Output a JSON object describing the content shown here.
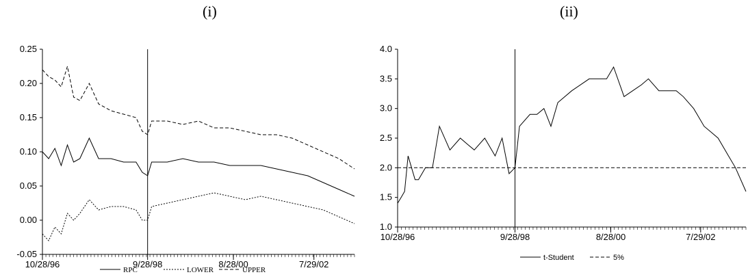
{
  "chart_data": [
    {
      "panel_label": "(i)",
      "type": "line",
      "xlabels": [
        "10/28/96",
        "9/28/98",
        "8/28/00",
        "7/29/02"
      ],
      "ylim": [
        -0.05,
        0.25
      ],
      "yticks": [
        "0.25",
        "0.20",
        "0.15",
        "0.10",
        "0.05",
        "0.00",
        "-0.05"
      ],
      "vline_at": 0.337,
      "series": [
        {
          "name": "RPC",
          "style": "solid",
          "x": [
            0,
            0.02,
            0.04,
            0.06,
            0.08,
            0.1,
            0.12,
            0.15,
            0.18,
            0.22,
            0.26,
            0.3,
            0.32,
            0.337,
            0.35,
            0.4,
            0.45,
            0.5,
            0.55,
            0.6,
            0.65,
            0.7,
            0.75,
            0.8,
            0.85,
            0.9,
            0.95,
            1.0
          ],
          "y": [
            0.1,
            0.09,
            0.105,
            0.08,
            0.11,
            0.085,
            0.09,
            0.12,
            0.09,
            0.09,
            0.085,
            0.085,
            0.07,
            0.065,
            0.085,
            0.085,
            0.09,
            0.085,
            0.085,
            0.08,
            0.08,
            0.08,
            0.075,
            0.07,
            0.065,
            0.055,
            0.045,
            0.035
          ]
        },
        {
          "name": "LOWER",
          "style": "dotted",
          "x": [
            0,
            0.02,
            0.04,
            0.06,
            0.08,
            0.1,
            0.12,
            0.15,
            0.18,
            0.22,
            0.26,
            0.3,
            0.32,
            0.337,
            0.35,
            0.4,
            0.45,
            0.5,
            0.55,
            0.6,
            0.65,
            0.7,
            0.75,
            0.8,
            0.85,
            0.9,
            0.95,
            1.0
          ],
          "y": [
            -0.02,
            -0.03,
            -0.01,
            -0.02,
            0.01,
            0.0,
            0.01,
            0.03,
            0.015,
            0.02,
            0.02,
            0.015,
            0.0,
            0.0,
            0.02,
            0.025,
            0.03,
            0.035,
            0.04,
            0.035,
            0.03,
            0.035,
            0.03,
            0.025,
            0.02,
            0.015,
            0.005,
            -0.005
          ]
        },
        {
          "name": "UPPER",
          "style": "dashed",
          "x": [
            0,
            0.02,
            0.04,
            0.06,
            0.08,
            0.1,
            0.12,
            0.15,
            0.18,
            0.22,
            0.26,
            0.3,
            0.32,
            0.337,
            0.35,
            0.4,
            0.45,
            0.5,
            0.55,
            0.6,
            0.65,
            0.7,
            0.75,
            0.8,
            0.85,
            0.9,
            0.95,
            1.0
          ],
          "y": [
            0.22,
            0.21,
            0.205,
            0.195,
            0.225,
            0.18,
            0.175,
            0.2,
            0.17,
            0.16,
            0.155,
            0.15,
            0.13,
            0.125,
            0.145,
            0.145,
            0.14,
            0.145,
            0.135,
            0.135,
            0.13,
            0.125,
            0.125,
            0.12,
            0.11,
            0.1,
            0.09,
            0.075
          ]
        }
      ],
      "legend": [
        "RPC",
        "LOWER",
        "UPPER"
      ]
    },
    {
      "panel_label": "(ii)",
      "type": "line",
      "xlabels": [
        "10/28/96",
        "9/28/98",
        "8/28/00",
        "7/29/02"
      ],
      "ylim": [
        1.0,
        4.0
      ],
      "yticks": [
        "4.0",
        "3.5",
        "3.0",
        "2.5",
        "2.0",
        "1.5",
        "1.0"
      ],
      "vline_at": 0.337,
      "series": [
        {
          "name": "t-Student",
          "style": "solid",
          "x": [
            0,
            0.01,
            0.02,
            0.03,
            0.04,
            0.05,
            0.06,
            0.08,
            0.1,
            0.12,
            0.15,
            0.18,
            0.2,
            0.22,
            0.25,
            0.28,
            0.3,
            0.32,
            0.337,
            0.35,
            0.38,
            0.4,
            0.42,
            0.44,
            0.46,
            0.5,
            0.55,
            0.6,
            0.62,
            0.65,
            0.7,
            0.72,
            0.75,
            0.8,
            0.82,
            0.85,
            0.88,
            0.9,
            0.92,
            0.95,
            0.97,
            1.0
          ],
          "y": [
            1.4,
            1.5,
            1.6,
            2.2,
            2.0,
            1.8,
            1.8,
            2.0,
            2.0,
            2.7,
            2.3,
            2.5,
            2.4,
            2.3,
            2.5,
            2.2,
            2.5,
            1.9,
            2.0,
            2.7,
            2.9,
            2.9,
            3.0,
            2.7,
            3.1,
            3.3,
            3.5,
            3.5,
            3.7,
            3.2,
            3.4,
            3.5,
            3.3,
            3.3,
            3.2,
            3.0,
            2.7,
            2.6,
            2.5,
            2.2,
            2.0,
            1.6
          ]
        },
        {
          "name": "5%",
          "style": "dashed",
          "x": [
            0,
            1
          ],
          "y": [
            2.0,
            2.0
          ]
        }
      ],
      "legend": [
        "t-Student",
        "5%"
      ]
    }
  ]
}
